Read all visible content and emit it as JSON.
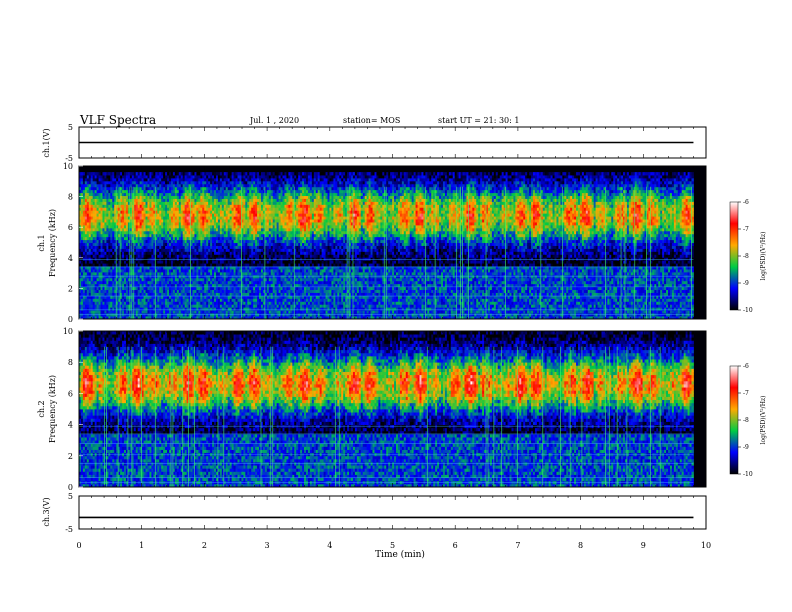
{
  "header": {
    "title": "VLF Spectra",
    "date": "Jul.  1 , 2020",
    "station": "station= MOS",
    "start": "start  UT =   21: 30: 1"
  },
  "colorbar": {
    "label": "log(PSD)(V²/Hz)",
    "ticks": [
      "-6",
      "-7",
      "-8",
      "-9",
      "-10"
    ],
    "stops": [
      "#ffffff",
      "#ff0000",
      "#ffaa00",
      "#00cc44",
      "#0000ff",
      "#000000"
    ]
  },
  "chart_data": [
    {
      "type": "line",
      "panel": "ch.1",
      "ylabel": "ch.1(V)",
      "yticks": [
        "5",
        "-5"
      ],
      "ylim": [
        -5,
        5
      ],
      "xlim": [
        0,
        10
      ],
      "series": [
        {
          "x": [
            0,
            9.8
          ],
          "values": [
            0,
            0
          ]
        }
      ]
    },
    {
      "type": "heatmap",
      "panel": "ch.1",
      "ylabel": "ch.1\nFrequency (kHz)",
      "yticks": [
        "0",
        "2",
        "4",
        "6",
        "8",
        "10"
      ],
      "ylim": [
        0,
        10
      ],
      "xlim": [
        0,
        10
      ],
      "x_end": 9.8,
      "max_freq": 9.6,
      "band_center": 6.8,
      "band_peak_log_psd": -7,
      "log_psd_range": [
        -10,
        -6
      ]
    },
    {
      "type": "heatmap",
      "panel": "ch.2",
      "ylabel": "ch.2\nFrequency (kHz)",
      "yticks": [
        "0",
        "2",
        "4",
        "6",
        "8",
        "10"
      ],
      "ylim": [
        0,
        10
      ],
      "xlim": [
        0,
        10
      ],
      "x_end": 9.8,
      "max_freq": 10,
      "band_center": 6.6,
      "band_peak_log_psd": -6.8,
      "log_psd_range": [
        -10,
        -6
      ]
    },
    {
      "type": "line",
      "panel": "ch.3",
      "ylabel": "ch.3(V)",
      "yticks": [
        "5",
        "-5"
      ],
      "ylim": [
        -5,
        5
      ],
      "xlim": [
        0,
        10
      ],
      "series": [
        {
          "x": [
            0,
            9.8
          ],
          "values": [
            -1.5,
            -1.5
          ]
        }
      ]
    }
  ],
  "xaxis": {
    "label": "Time (min)",
    "ticks": [
      "0",
      "1",
      "2",
      "3",
      "4",
      "5",
      "6",
      "7",
      "8",
      "9",
      "10"
    ]
  }
}
